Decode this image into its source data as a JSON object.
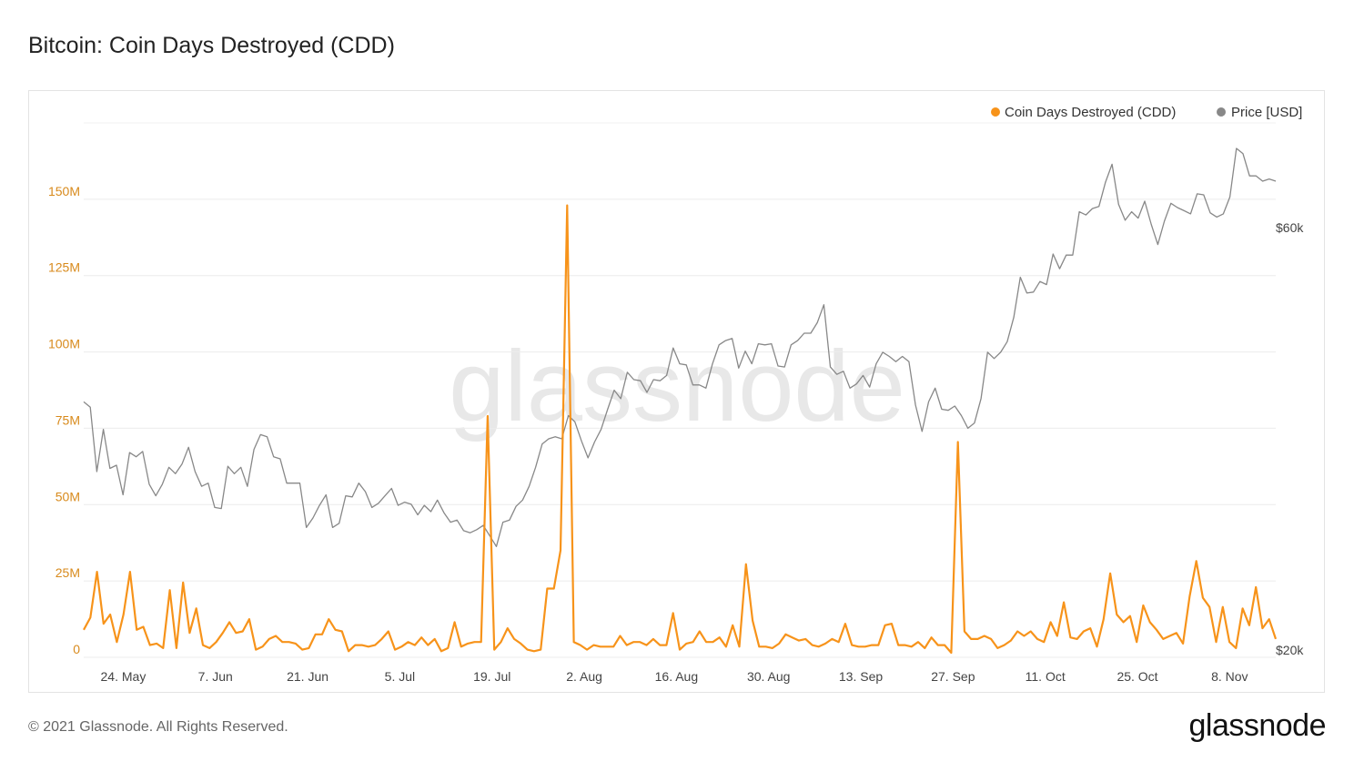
{
  "title": "Bitcoin: Coin Days Destroyed (CDD)",
  "footer": {
    "copyright": "© 2021 Glassnode. All Rights Reserved.",
    "logo_text": "glassnode"
  },
  "watermark": "glassnode",
  "chart_data": {
    "type": "line",
    "x_range": [
      "2021-05-18",
      "2021-11-15"
    ],
    "x_tick_labels": [
      "24. May",
      "7. Jun",
      "21. Jun",
      "5. Jul",
      "19. Jul",
      "2. Aug",
      "16. Aug",
      "30. Aug",
      "13. Sep",
      "27. Sep",
      "11. Oct",
      "25. Oct",
      "8. Nov"
    ],
    "left_axis": {
      "ticks": [
        0,
        25000000,
        50000000,
        75000000,
        100000000,
        125000000,
        150000000
      ],
      "tick_labels": [
        "0",
        "25M",
        "50M",
        "75M",
        "100M",
        "125M",
        "150M"
      ],
      "ylim": [
        0,
        175000000
      ]
    },
    "right_axis": {
      "ticks": [
        20000,
        60000
      ],
      "tick_labels": [
        "$20k",
        "$60k"
      ]
    },
    "legend": {
      "placement": "top-right",
      "entries": [
        {
          "name": "Coin Days Destroyed (CDD)",
          "color": "#f7931a"
        },
        {
          "name": "Price [USD]",
          "color": "#888888"
        }
      ]
    },
    "grid": true,
    "series": [
      {
        "name": "Coin Days Destroyed (CDD)",
        "color": "#f7931a",
        "axis": "left",
        "values": [
          9000000,
          13000000,
          28000000,
          11000000,
          14000000,
          5000000,
          14000000,
          28000000,
          9000000,
          10000000,
          4000000,
          4500000,
          3000000,
          22000000,
          3000000,
          24500000,
          8000000,
          16000000,
          4000000,
          3000000,
          5000000,
          8000000,
          11500000,
          8000000,
          8500000,
          12500000,
          2500000,
          3500000,
          6000000,
          7000000,
          5000000,
          5000000,
          4500000,
          2500000,
          3000000,
          7500000,
          7500000,
          12500000,
          9000000,
          8500000,
          2000000,
          4000000,
          4000000,
          3500000,
          4000000,
          6000000,
          8500000,
          2500000,
          3500000,
          5000000,
          4000000,
          6500000,
          4000000,
          6000000,
          2000000,
          3000000,
          11500000,
          3500000,
          4500000,
          5000000,
          5000000,
          79000000,
          2500000,
          5000000,
          9500000,
          6000000,
          4500000,
          2500000,
          2000000,
          2500000,
          22500000,
          22500000,
          35000000,
          148000000,
          5000000,
          4000000,
          2500000,
          4000000,
          3500000,
          3500000,
          3500000,
          7000000,
          4000000,
          5000000,
          5000000,
          4000000,
          6000000,
          4000000,
          4000000,
          14500000,
          2500000,
          4500000,
          5000000,
          8500000,
          5000000,
          5000000,
          6500000,
          3500000,
          10500000,
          3500000,
          30500000,
          12000000,
          3500000,
          3500000,
          3000000,
          4500000,
          7500000,
          6500000,
          5500000,
          6000000,
          4000000,
          3500000,
          4500000,
          6000000,
          5000000,
          11000000,
          4000000,
          3500000,
          3500000,
          4000000,
          4000000,
          10500000,
          11000000,
          4000000,
          4000000,
          3500000,
          5000000,
          3000000,
          6500000,
          4000000,
          4000000,
          1500000,
          70500000,
          8500000,
          6000000,
          6000000,
          7000000,
          6000000,
          3000000,
          4000000,
          5500000,
          8500000,
          7000000,
          8500000,
          6000000,
          5000000,
          11500000,
          7000000,
          18000000,
          6500000,
          6000000,
          8500000,
          9500000,
          3500000,
          12500000,
          27500000,
          14000000,
          11500000,
          13500000,
          5000000,
          17000000,
          11500000,
          9000000,
          6000000,
          7000000,
          8000000,
          4500000,
          20000000,
          31500000,
          19500000,
          16500000,
          5000000,
          16500000,
          5000000,
          3000000,
          16000000,
          10500000,
          23000000,
          9500000,
          12500000,
          6000000
        ]
      },
      {
        "name": "Price [USD]",
        "color": "#888888",
        "axis": "right",
        "values": [
          43500,
          43000,
          36900,
          40900,
          37200,
          37500,
          34700,
          38700,
          38300,
          38800,
          35700,
          34600,
          35700,
          37300,
          36700,
          37600,
          39200,
          36900,
          35500,
          35800,
          33500,
          33400,
          37400,
          36700,
          37300,
          35500,
          39000,
          40400,
          40200,
          38300,
          38100,
          35800,
          35800,
          35800,
          31600,
          32500,
          33700,
          34700,
          31600,
          32000,
          34600,
          34500,
          35800,
          35000,
          33500,
          33900,
          34600,
          35300,
          33700,
          34000,
          33800,
          32800,
          33700,
          33100,
          34200,
          33000,
          32100,
          32300,
          31300,
          31100,
          31400,
          31800,
          30800,
          29800,
          32100,
          32300,
          33600,
          34200,
          35500,
          37300,
          39500,
          40000,
          40200,
          40000,
          42200,
          41600,
          39800,
          38200,
          39700,
          40900,
          42800,
          44600,
          43800,
          46300,
          45600,
          45500,
          44400,
          45600,
          45500,
          46000,
          48600,
          47100,
          47000,
          45100,
          45100,
          44800,
          47100,
          48900,
          49300,
          49500,
          46700,
          48300,
          47100,
          49000,
          48900,
          49000,
          46900,
          46800,
          48900,
          49300,
          50000,
          50000,
          51000,
          52700,
          46800,
          46100,
          46400,
          44800,
          45200,
          46000,
          44900,
          47100,
          48200,
          47800,
          47300,
          47800,
          47300,
          43200,
          40700,
          43500,
          44800,
          42800,
          42700,
          43100,
          42200,
          41000,
          41500,
          43800,
          48200,
          47600,
          48200,
          49200,
          51500,
          55300,
          53800,
          53900,
          54900,
          54600,
          57500,
          56100,
          57400,
          57400,
          61500,
          61200,
          61800,
          62000,
          64300,
          66000,
          62200,
          60700,
          61500,
          60900,
          62500,
          60300,
          58400,
          60600,
          62300,
          61900,
          61600,
          61300,
          63200,
          63100,
          61400,
          61000,
          61300,
          62900,
          67500,
          67000,
          64900,
          64900,
          64400,
          64600,
          64400
        ]
      }
    ]
  }
}
